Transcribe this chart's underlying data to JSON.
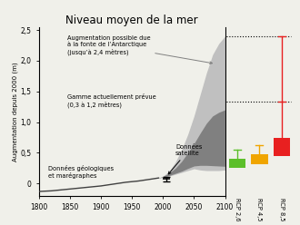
{
  "title": "Niveau moyen de la mer",
  "ylabel": "Augmentation depuis 2000 (m)",
  "xlim": [
    1800,
    2100
  ],
  "ylim": [
    -0.2,
    2.55
  ],
  "yticks": [
    0.0,
    0.5,
    1.0,
    1.5,
    2.0,
    2.5
  ],
  "ytick_labels": [
    "0",
    "0,5",
    "1,0",
    "1,5",
    "2,0",
    "2,5"
  ],
  "xticks": [
    1800,
    1850,
    1900,
    1950,
    2000,
    2050,
    2100
  ],
  "geo_line_x": [
    1800,
    1820,
    1840,
    1860,
    1880,
    1900,
    1920,
    1940,
    1960,
    1980,
    1993
  ],
  "geo_line_y": [
    -0.13,
    -0.12,
    -0.1,
    -0.08,
    -0.06,
    -0.04,
    -0.01,
    0.02,
    0.04,
    0.07,
    0.09
  ],
  "light_gray_upper_x": [
    1993,
    2000,
    2010,
    2020,
    2030,
    2040,
    2050,
    2060,
    2070,
    2080,
    2090,
    2100
  ],
  "light_gray_upper_y": [
    0.09,
    0.12,
    0.2,
    0.35,
    0.55,
    0.8,
    1.1,
    1.45,
    1.8,
    2.1,
    2.28,
    2.4
  ],
  "light_gray_lower_y": [
    0.09,
    0.1,
    0.12,
    0.15,
    0.18,
    0.21,
    0.24,
    0.22,
    0.21,
    0.21,
    0.21,
    0.22
  ],
  "dark_gray_upper_x": [
    1993,
    2000,
    2010,
    2020,
    2030,
    2040,
    2050,
    2060,
    2070,
    2080,
    2090,
    2100
  ],
  "dark_gray_upper_y": [
    0.09,
    0.115,
    0.17,
    0.25,
    0.36,
    0.5,
    0.65,
    0.82,
    0.98,
    1.1,
    1.16,
    1.2
  ],
  "dark_gray_lower_y": [
    0.09,
    0.105,
    0.13,
    0.165,
    0.2,
    0.245,
    0.285,
    0.295,
    0.295,
    0.29,
    0.285,
    0.28
  ],
  "satellite_x": 2005,
  "satellite_y": 0.07,
  "satellite_err": 0.04,
  "rcp26_bar": {
    "low": 0.26,
    "mid": 0.4,
    "high": 0.55,
    "color": "#5CBF2A"
  },
  "rcp45_bar": {
    "low": 0.32,
    "mid": 0.47,
    "high": 0.63,
    "color": "#F0A500"
  },
  "rcp85_bar": {
    "low": 0.45,
    "mid": 0.74,
    "high": 1.33,
    "color": "#E82020"
  },
  "rcp85_extreme": 2.4,
  "dotted_line_y1": 1.33,
  "dotted_line_y2": 2.4,
  "ann1_text": "Augmentation possible due\nà la fonte de l’Antarctique\n(jusqu’à 2,4 mètres)",
  "ann2_text": "Gamme actuellement prévue\n(0,3 à 1,2 mètres)",
  "ann3_text": "Données\nsatellite",
  "ann4_text": "Données géologiques\net marégraphes",
  "light_gray_color": "#c0c0c0",
  "dark_gray_color": "#808080",
  "geo_line_color": "#404040",
  "background_color": "#f0f0ea"
}
